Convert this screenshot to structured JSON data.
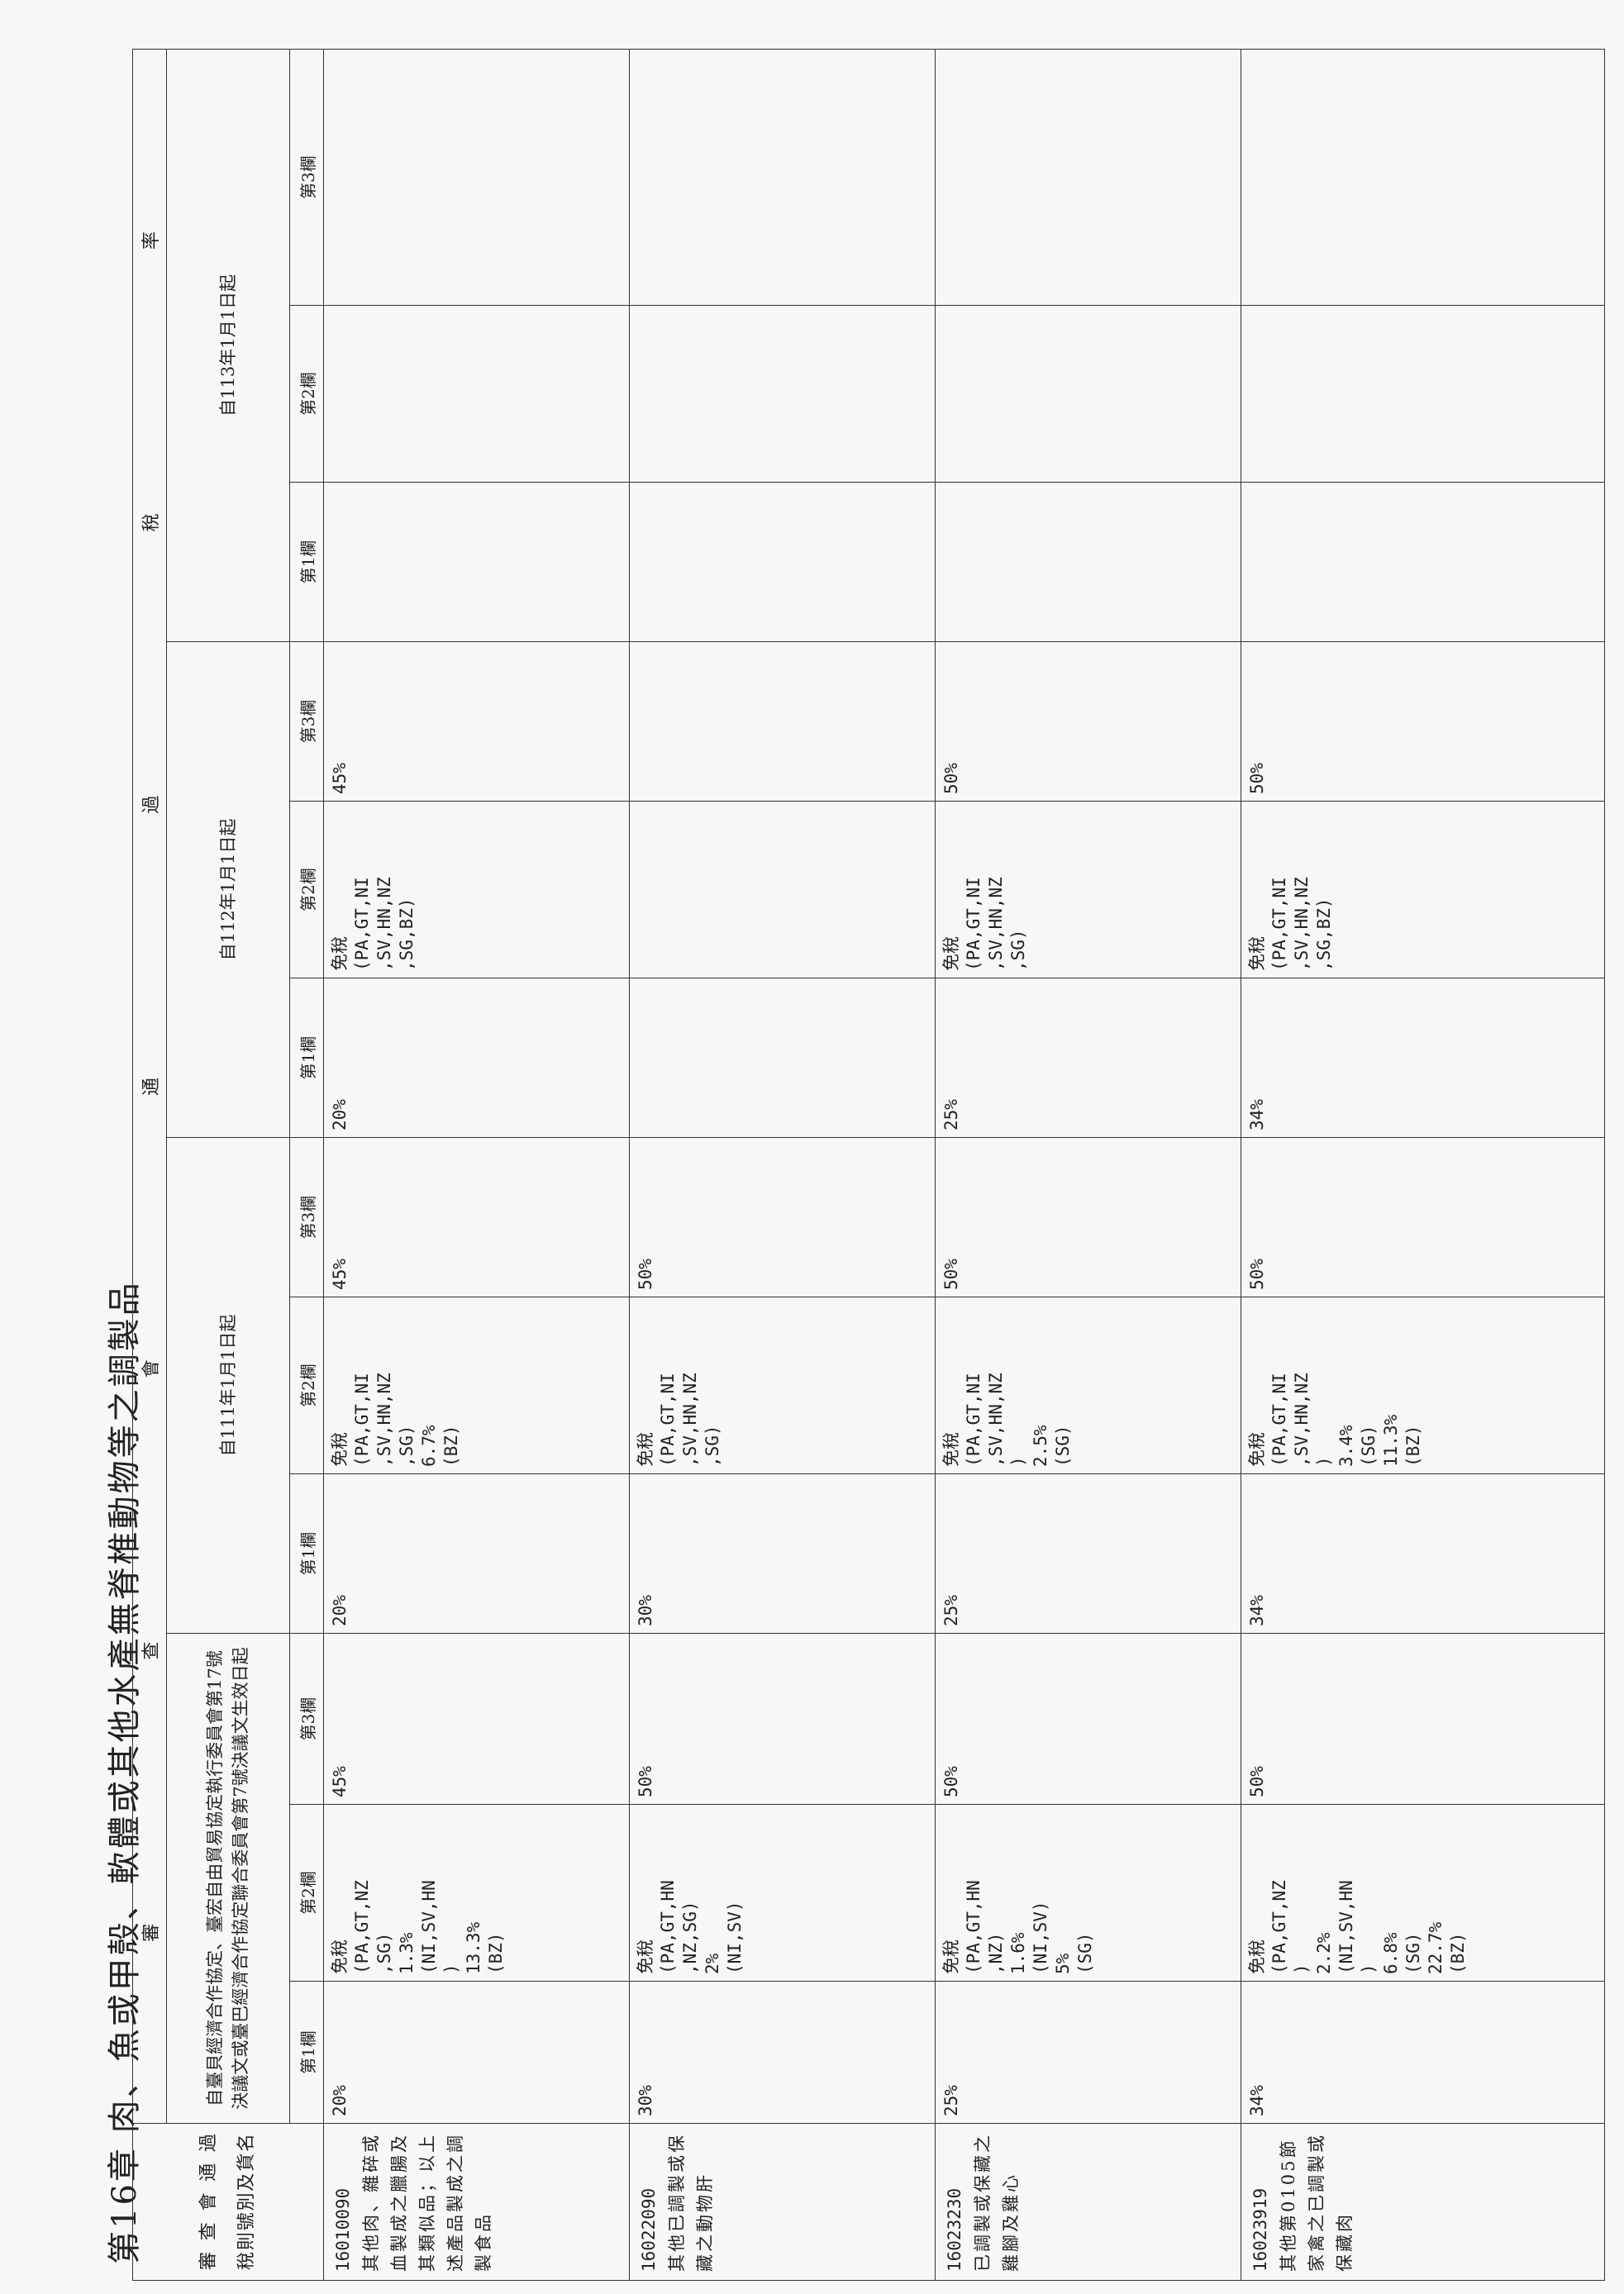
{
  "chapter_title": "第16章 肉、魚或甲殼、軟體或其他水產無脊椎動物等之調製品",
  "header": {
    "code_col_line1": [
      "審",
      "查",
      "會",
      "通",
      "過"
    ],
    "code_col_line2": [
      "稅",
      "則",
      "號",
      "別",
      "及",
      "貨",
      "名"
    ],
    "band_left": [
      "審",
      "查"
    ],
    "band_right": [
      "會",
      "通",
      "過",
      "稅",
      "率"
    ],
    "periods": [
      "自臺貝經濟合作協定、臺宏自由貿易協定執行委員會第17號決議文或臺巴經濟合作協定聯合委員會第7號決議文生效日起",
      "自111年1月1日起",
      "自112年1月1日起",
      "自113年1月1日起"
    ],
    "col_labels": [
      "第1欄",
      "第2欄",
      "第3欄"
    ]
  },
  "rows": [
    {
      "code": "16010090",
      "name": "其他肉、雜碎或血製成之臘腸及其類似品；以上述產品製成之調製食品",
      "rates": [
        [
          "20%",
          "免稅\n(PA,GT,NZ\n,SG)\n1.3%\n(NI,SV,HN\n)\n13.3%\n(BZ)",
          "45%"
        ],
        [
          "20%",
          "免稅\n(PA,GT,NI\n,SV,HN,NZ\n,SG)\n6.7%\n(BZ)",
          "45%"
        ],
        [
          "20%",
          "免稅\n(PA,GT,NI\n,SV,HN,NZ\n,SG,BZ)",
          "45%"
        ],
        [
          "",
          "",
          ""
        ]
      ]
    },
    {
      "code": "16022090",
      "name": "其他已調製或保藏之動物肝",
      "rates": [
        [
          "30%",
          "免稅\n(PA,GT,HN\n,NZ,SG)\n2%\n(NI,SV)",
          "50%"
        ],
        [
          "30%",
          "免稅\n(PA,GT,NI\n,SV,HN,NZ\n,SG)",
          "50%"
        ],
        [
          "",
          "",
          ""
        ],
        [
          "",
          "",
          ""
        ]
      ]
    },
    {
      "code": "16023230",
      "name": "已調製或保藏之雞腳及雞心",
      "rates": [
        [
          "25%",
          "免稅\n(PA,GT,HN\n,NZ)\n1.6%\n(NI,SV)\n5%\n(SG)",
          "50%"
        ],
        [
          "25%",
          "免稅\n(PA,GT,NI\n,SV,HN,NZ\n)\n2.5%\n(SG)",
          "50%"
        ],
        [
          "25%",
          "免稅\n(PA,GT,NI\n,SV,HN,NZ\n,SG)",
          "50%"
        ],
        [
          "",
          "",
          ""
        ]
      ]
    },
    {
      "code": "16023919",
      "name": "其他第0105節家禽之已調製或保藏肉",
      "rates": [
        [
          "34%",
          "免稅\n(PA,GT,NZ\n)\n2.2%\n(NI,SV,HN\n)\n6.8%\n(SG)\n22.7%\n(BZ)",
          "50%"
        ],
        [
          "34%",
          "免稅\n(PA,GT,NI\n,SV,HN,NZ\n)\n3.4%\n(SG)\n11.3%\n(BZ)",
          "50%"
        ],
        [
          "34%",
          "免稅\n(PA,GT,NI\n,SV,HN,NZ\n,SG,BZ)",
          "50%"
        ],
        [
          "",
          "",
          ""
        ]
      ]
    }
  ]
}
